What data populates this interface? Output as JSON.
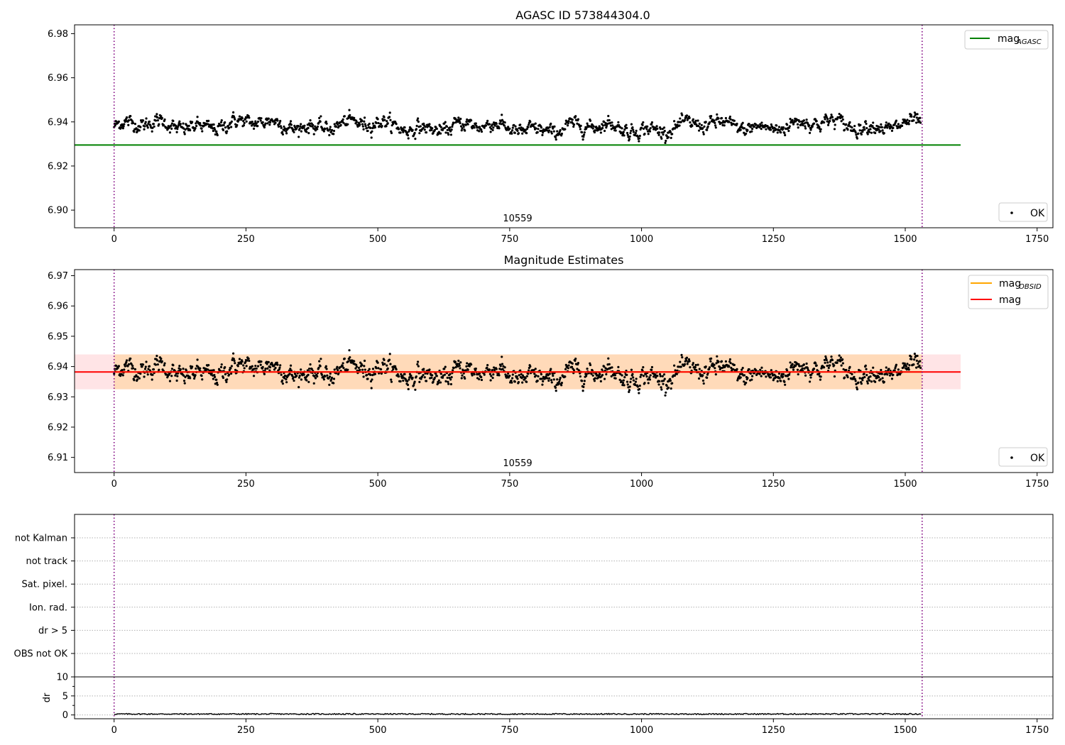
{
  "chart_data": [
    {
      "type": "scatter",
      "title": "AGASC ID 573844304.0",
      "annotation": "10559",
      "xlim": [
        -75,
        1780
      ],
      "ylim": [
        6.892,
        6.984
      ],
      "xticks": [
        0,
        250,
        500,
        750,
        1000,
        1250,
        1500,
        1750
      ],
      "yticks": [
        6.9,
        6.92,
        6.94,
        6.96,
        6.98
      ],
      "ytick_labels": [
        "6.90",
        "6.92",
        "6.94",
        "6.96",
        "6.98"
      ],
      "series": [
        {
          "name": "OK",
          "kind": "points",
          "color": "#000000",
          "n_points": 1530,
          "x_range": [
            0,
            1530
          ],
          "y_center": 6.938,
          "y_spread": 0.006
        },
        {
          "name": "mag_AGASC",
          "kind": "hline",
          "color": "#008000",
          "y": 6.9295,
          "x_range": [
            -75,
            1605
          ]
        }
      ],
      "vlines": [
        {
          "x": 0,
          "color": "#800080",
          "style": "dotted"
        },
        {
          "x": 1532,
          "color": "#800080",
          "style": "dotted"
        }
      ],
      "legend": {
        "upper": {
          "label": "mag",
          "sub": "AGASC",
          "position": "upper right"
        },
        "lower": {
          "label": "OK",
          "position": "lower right"
        }
      }
    },
    {
      "type": "scatter",
      "title": "Magnitude Estimates",
      "annotation": "10559",
      "xlim": [
        -75,
        1780
      ],
      "ylim": [
        6.905,
        6.972
      ],
      "xticks": [
        0,
        250,
        500,
        750,
        1000,
        1250,
        1500,
        1750
      ],
      "yticks": [
        6.91,
        6.92,
        6.93,
        6.94,
        6.95,
        6.96,
        6.97
      ],
      "ytick_labels": [
        "6.91",
        "6.92",
        "6.93",
        "6.94",
        "6.95",
        "6.96",
        "6.97"
      ],
      "series": [
        {
          "name": "OK",
          "kind": "points",
          "color": "#000000",
          "n_points": 1530,
          "x_range": [
            0,
            1530
          ],
          "y_center": 6.938,
          "y_spread": 0.006
        },
        {
          "name": "mag_OBSID",
          "kind": "hline+band",
          "color": "#FFA500",
          "y": 6.9382,
          "band": [
            6.9325,
            6.944
          ],
          "band_color": "#FFDAB9",
          "x_range": [
            0,
            1532
          ]
        },
        {
          "name": "mag",
          "kind": "hline+band",
          "color": "#FF0000",
          "y": 6.9382,
          "band": [
            6.9325,
            6.944
          ],
          "band_color": "#FFE4E6",
          "x_range": [
            -75,
            1605
          ]
        }
      ],
      "vlines": [
        {
          "x": 0,
          "color": "#800080",
          "style": "dotted"
        },
        {
          "x": 1532,
          "color": "#800080",
          "style": "dotted"
        }
      ],
      "legend": {
        "upper": [
          {
            "label": "mag",
            "sub": "OBSID",
            "color": "#FFA500"
          },
          {
            "label": "mag",
            "color": "#FF0000"
          }
        ],
        "lower": {
          "label": "OK",
          "position": "lower right"
        }
      }
    },
    {
      "type": "scatter",
      "title": "",
      "categories": [
        "not Kalman",
        "not track",
        "Sat. pixel.",
        "Ion. rad.",
        "dr > 5",
        "OBS not OK"
      ],
      "xlim": [
        -75,
        1780
      ],
      "points": [],
      "vlines": [
        {
          "x": 0,
          "color": "#800080",
          "style": "dotted"
        },
        {
          "x": 1532,
          "color": "#800080",
          "style": "dotted"
        }
      ],
      "grid": "horizontal dotted"
    },
    {
      "type": "line",
      "ylabel": "dr",
      "xlim": [
        -75,
        1780
      ],
      "ylim": [
        -1,
        10
      ],
      "xticks": [
        0,
        250,
        500,
        750,
        1000,
        1250,
        1500,
        1750
      ],
      "yticks": [
        0,
        5,
        10
      ],
      "ytick_labels": [
        "0",
        "5",
        "10"
      ],
      "series": [
        {
          "name": "dr",
          "color": "#000000",
          "x_range": [
            0,
            1530
          ],
          "y_center": 0.25,
          "y_spread": 0.15
        }
      ],
      "vlines": [
        {
          "x": 0,
          "color": "#800080",
          "style": "dotted"
        },
        {
          "x": 1532,
          "color": "#800080",
          "style": "dotted"
        }
      ]
    }
  ]
}
